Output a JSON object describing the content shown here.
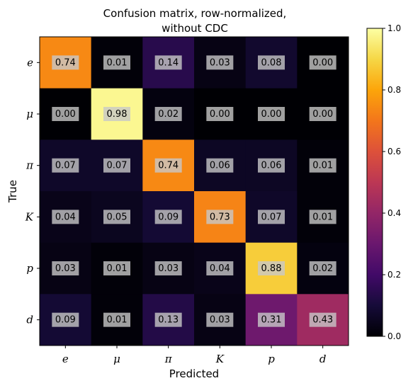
{
  "chart_data": {
    "type": "heatmap",
    "title": [
      "Confusion matrix, row-normalized,",
      "without CDC"
    ],
    "xlabel": "Predicted",
    "ylabel": "True",
    "x_categories": [
      "e",
      "μ",
      "π",
      "K",
      "p",
      "d"
    ],
    "y_categories": [
      "e",
      "μ",
      "π",
      "K",
      "p",
      "d"
    ],
    "values": [
      [
        0.74,
        0.01,
        0.14,
        0.03,
        0.08,
        0.0
      ],
      [
        0.0,
        0.98,
        0.02,
        0.0,
        0.0,
        0.0
      ],
      [
        0.07,
        0.07,
        0.74,
        0.06,
        0.06,
        0.01
      ],
      [
        0.04,
        0.05,
        0.09,
        0.73,
        0.07,
        0.01
      ],
      [
        0.03,
        0.01,
        0.03,
        0.04,
        0.88,
        0.02
      ],
      [
        0.09,
        0.01,
        0.13,
        0.03,
        0.31,
        0.43
      ]
    ],
    "colormap": "inferno",
    "value_range": [
      0.0,
      1.0
    ],
    "colorbar_ticks": [
      "0.0",
      "0.2",
      "0.4",
      "0.6",
      "0.8",
      "1.0"
    ],
    "label_box_color": "#c8c8c8"
  }
}
